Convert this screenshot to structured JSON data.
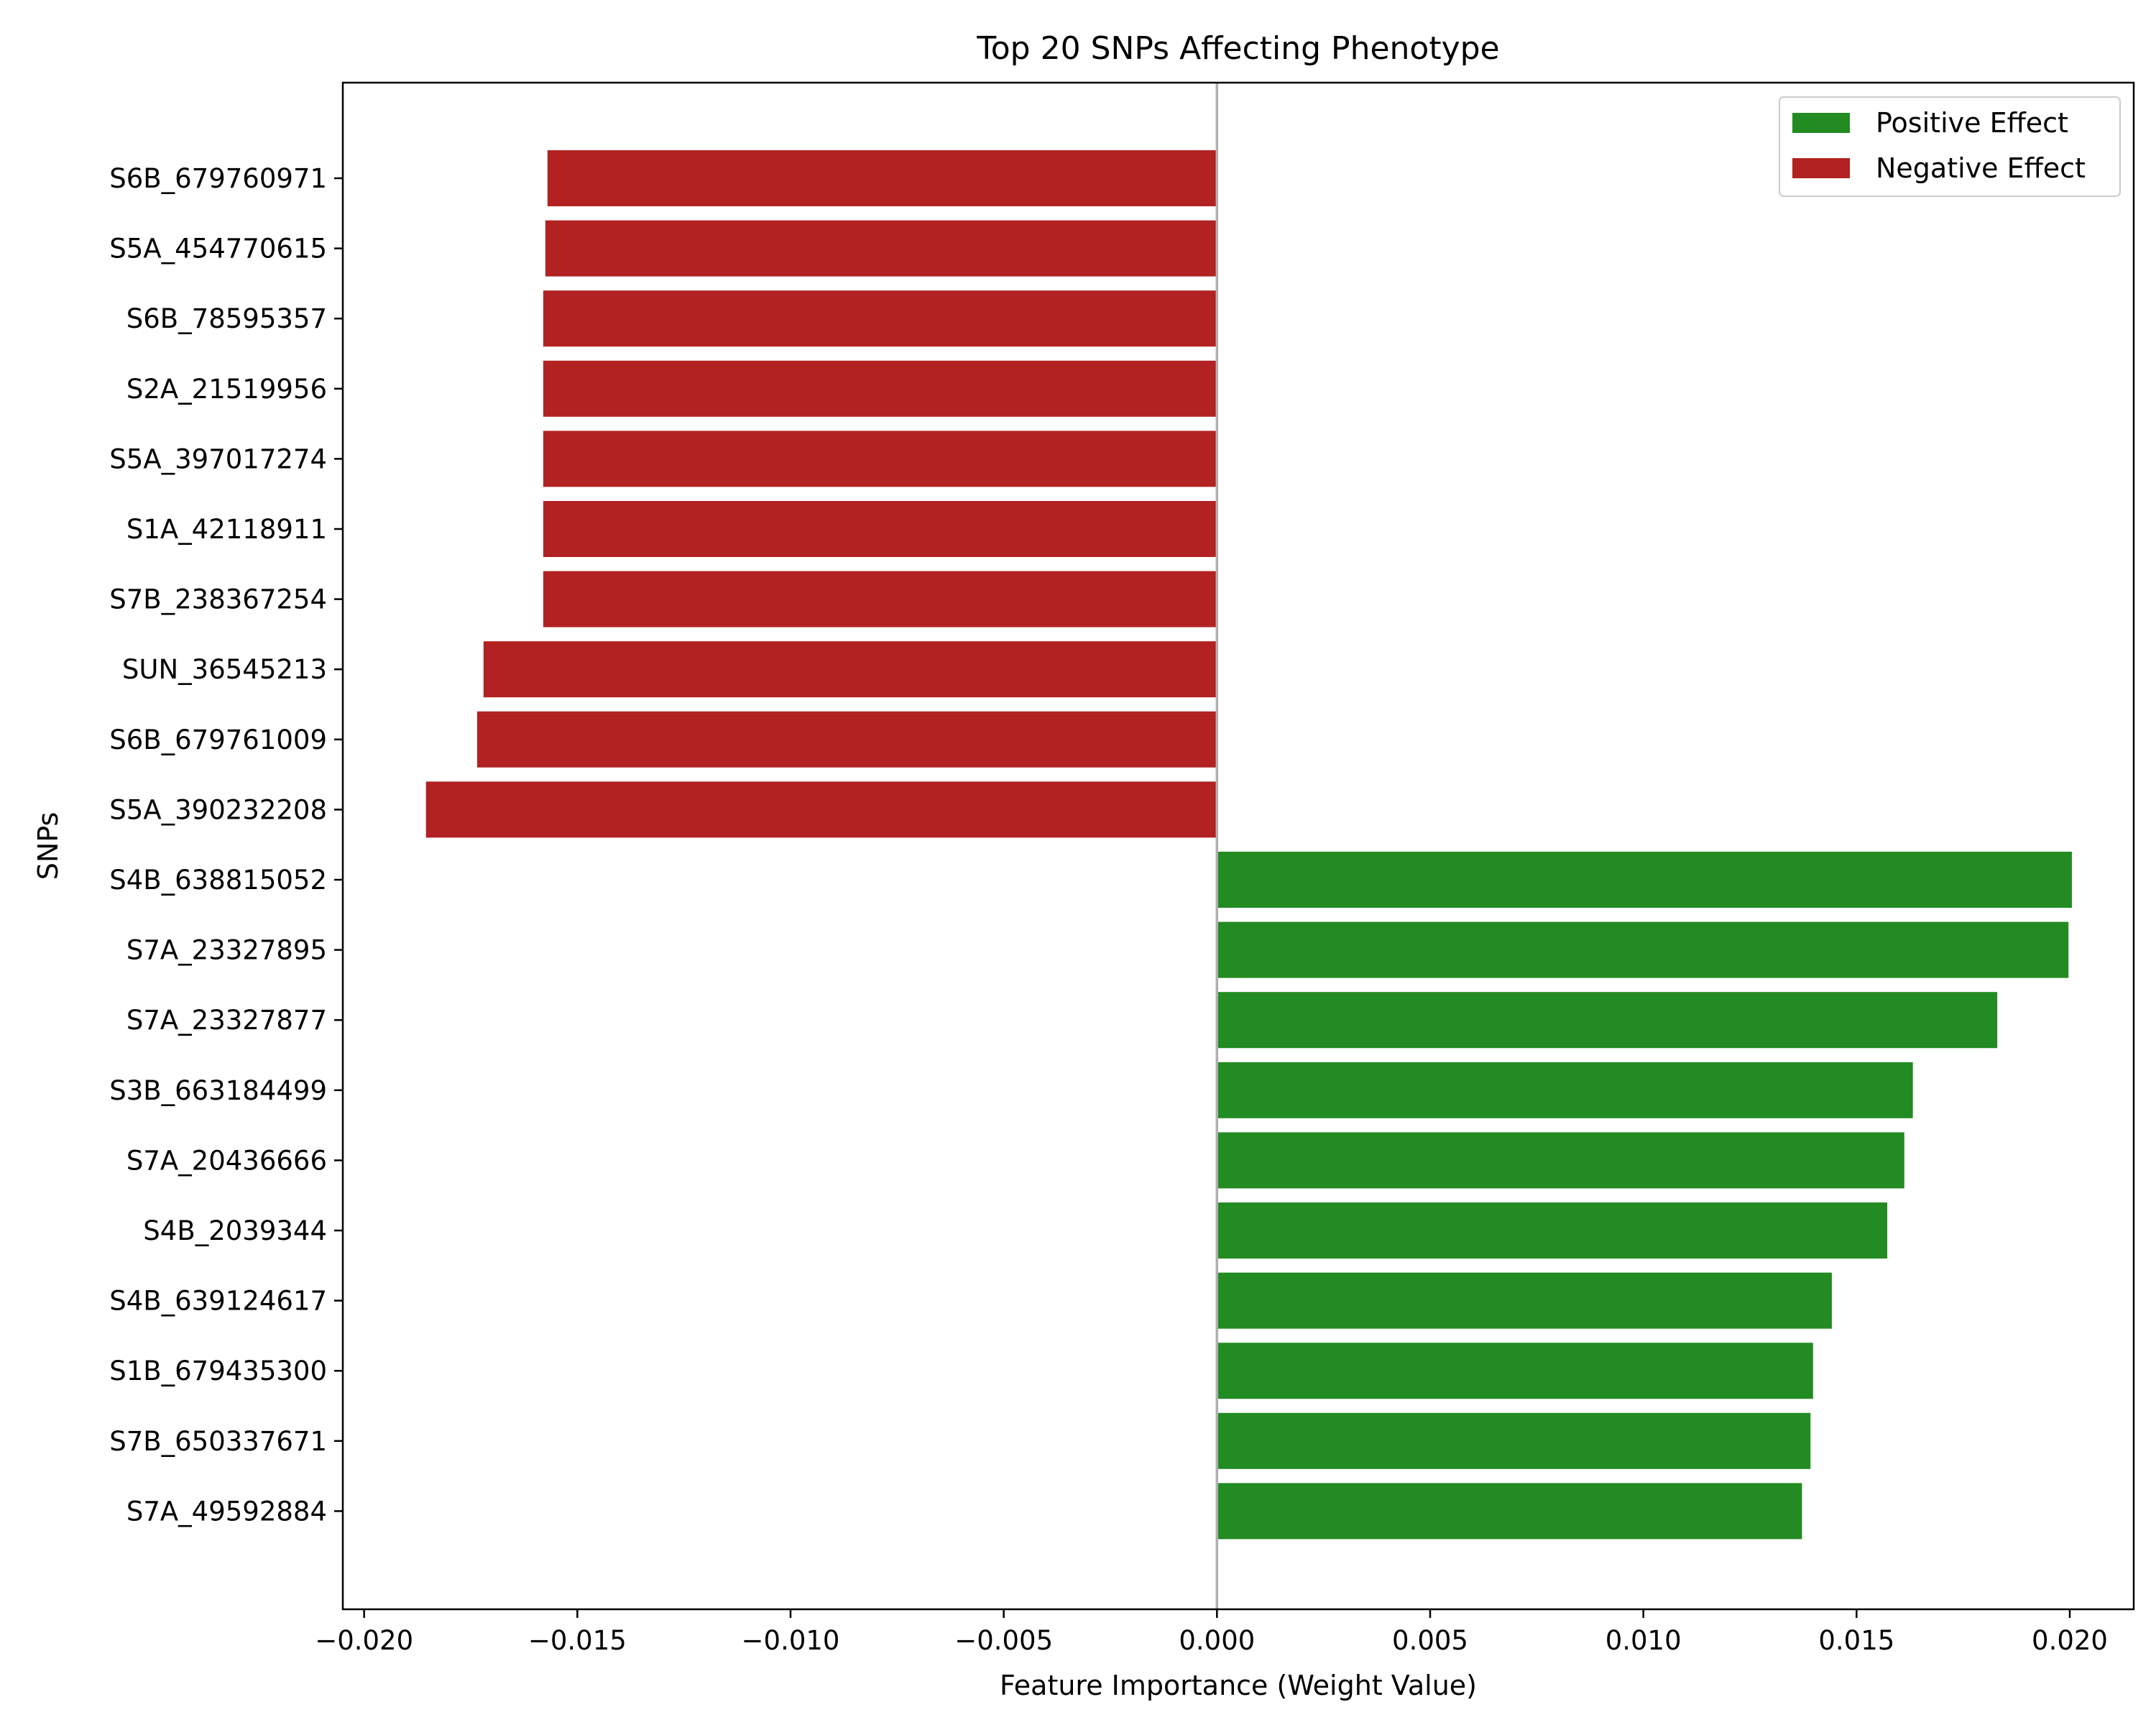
{
  "chart_data": {
    "type": "bar",
    "orientation": "horizontal",
    "title": "Top 20 SNPs Affecting Phenotype",
    "xlabel": "Feature Importance (Weight Value)",
    "ylabel": "SNPs",
    "xlim": [
      -0.0205,
      0.0215
    ],
    "xticks": [
      -0.02,
      -0.015,
      -0.01,
      -0.005,
      0.0,
      0.005,
      0.01,
      0.015,
      0.02
    ],
    "xtick_labels": [
      "−0.020",
      "−0.015",
      "−0.010",
      "−0.005",
      "0.000",
      "0.005",
      "0.010",
      "0.015",
      "0.020"
    ],
    "grid": false,
    "zero_line": true,
    "legend_position": "top-right",
    "legend": [
      {
        "label": "Positive Effect",
        "color": "#228b22"
      },
      {
        "label": "Negative Effect",
        "color": "#b22222"
      }
    ],
    "categories": [
      "S6B_679760971",
      "S5A_454770615",
      "S6B_78595357",
      "S2A_21519956",
      "S5A_397017274",
      "S1A_42118911",
      "S7B_238367254",
      "SUN_36545213",
      "S6B_679761009",
      "S5A_390232208",
      "S4B_638815052",
      "S7A_23327895",
      "S7A_23327877",
      "S3B_663184499",
      "S7A_20436666",
      "S4B_2039344",
      "S4B_639124617",
      "S1B_679435300",
      "S7B_650337671",
      "S7A_49592884"
    ],
    "values": [
      -0.0157,
      -0.01575,
      -0.0158,
      -0.0158,
      -0.0158,
      -0.0158,
      -0.0158,
      -0.0172,
      -0.01735,
      -0.01855,
      0.02005,
      0.01997,
      0.0183,
      0.01632,
      0.01612,
      0.01572,
      0.01442,
      0.01398,
      0.01392,
      0.01372
    ],
    "colors": {
      "positive": "#228b22",
      "negative": "#b22222",
      "zero_line": "#b0b0b0"
    }
  }
}
